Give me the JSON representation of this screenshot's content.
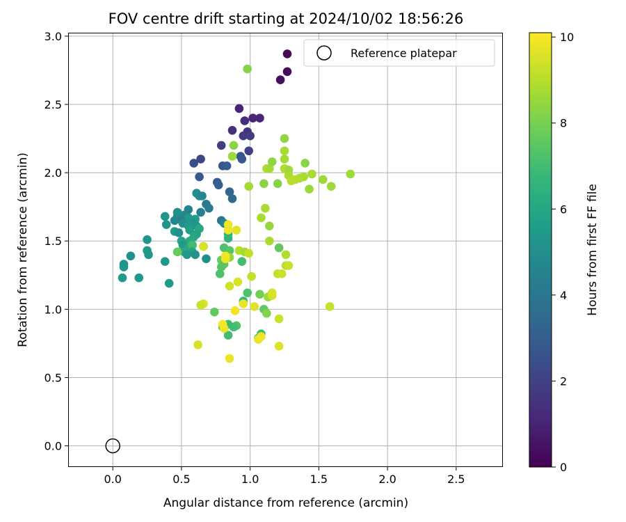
{
  "chart_data": {
    "type": "scatter",
    "title": "FOV centre drift starting at 2024/10/02 18:56:26",
    "xlabel": "Angular distance from reference (arcmin)",
    "ylabel": "Rotation from reference (arcmin)",
    "xlim": [
      -0.32,
      2.84
    ],
    "ylim": [
      -0.15,
      3.02
    ],
    "xticks": [
      0.0,
      0.5,
      1.0,
      1.5,
      2.0,
      2.5
    ],
    "xtick_labels": [
      "0.0",
      "0.5",
      "1.0",
      "1.5",
      "2.0",
      "2.5"
    ],
    "yticks": [
      0.0,
      0.5,
      1.0,
      1.5,
      2.0,
      2.5,
      3.0
    ],
    "ytick_labels": [
      "0.0",
      "0.5",
      "1.0",
      "1.5",
      "2.0",
      "2.5",
      "3.0"
    ],
    "grid": true,
    "legend": {
      "position": "upper right",
      "entries": [
        "Reference platepar"
      ]
    },
    "reference_point": {
      "x": 0.0,
      "y": 0.0,
      "label": "Reference platepar",
      "marker": "hollow circle",
      "edge_color": "#000000"
    },
    "colorbar": {
      "label": "Hours from first FF file",
      "range": [
        0,
        10.1
      ],
      "ticks": [
        0,
        2,
        4,
        6,
        8,
        10
      ],
      "tick_labels": [
        "0",
        "2",
        "4",
        "6",
        "8",
        "10"
      ],
      "colormap": "viridis",
      "colormap_stops": [
        "#440154",
        "#482878",
        "#3e4989",
        "#31688e",
        "#26828e",
        "#1f9e89",
        "#35b779",
        "#6ece58",
        "#b5de2b",
        "#fde725"
      ]
    },
    "series": [
      {
        "points": [
          [
            1.27,
            2.87,
            0.2
          ],
          [
            1.27,
            2.74,
            0.3
          ],
          [
            1.22,
            2.68,
            0.4
          ],
          [
            0.98,
            2.76,
            8.2
          ],
          [
            0.92,
            2.47,
            1.0
          ],
          [
            1.02,
            2.4,
            1.1
          ],
          [
            1.07,
            2.4,
            1.1
          ],
          [
            0.96,
            2.38,
            1.3
          ],
          [
            0.87,
            2.31,
            1.4
          ],
          [
            0.98,
            2.3,
            1.5
          ],
          [
            0.95,
            2.27,
            1.7
          ],
          [
            1.0,
            2.27,
            1.8
          ],
          [
            0.79,
            2.2,
            1.9
          ],
          [
            0.99,
            2.16,
            2.0
          ],
          [
            0.64,
            2.1,
            2.2
          ],
          [
            0.59,
            2.07,
            2.4
          ],
          [
            0.93,
            2.12,
            2.6
          ],
          [
            0.94,
            2.1,
            2.8
          ],
          [
            0.8,
            2.05,
            2.7
          ],
          [
            0.83,
            2.05,
            3.0
          ],
          [
            0.63,
            1.97,
            2.8
          ],
          [
            0.76,
            1.93,
            2.9
          ],
          [
            0.77,
            1.91,
            3.2
          ],
          [
            0.85,
            1.86,
            3.3
          ],
          [
            0.87,
            1.81,
            3.5
          ],
          [
            0.61,
            1.85,
            5.0
          ],
          [
            0.63,
            1.83,
            4.8
          ],
          [
            0.65,
            1.83,
            4.7
          ],
          [
            0.68,
            1.77,
            4.0
          ],
          [
            0.7,
            1.74,
            4.2
          ],
          [
            0.64,
            1.71,
            4.3
          ],
          [
            0.55,
            1.73,
            4.5
          ],
          [
            0.52,
            1.69,
            4.7
          ],
          [
            0.47,
            1.71,
            5.0
          ],
          [
            0.47,
            1.68,
            5.1
          ],
          [
            0.38,
            1.68,
            5.3
          ],
          [
            0.55,
            1.67,
            5.5
          ],
          [
            0.6,
            1.66,
            5.6
          ],
          [
            0.5,
            1.65,
            4.4
          ],
          [
            0.45,
            1.65,
            4.6
          ],
          [
            0.39,
            1.62,
            5.2
          ],
          [
            0.51,
            1.63,
            5.0
          ],
          [
            0.59,
            1.63,
            5.1
          ],
          [
            0.55,
            1.61,
            5.5
          ],
          [
            0.56,
            1.58,
            5.7
          ],
          [
            0.61,
            1.61,
            5.4
          ],
          [
            0.45,
            1.57,
            5.6
          ],
          [
            0.48,
            1.56,
            5.0
          ],
          [
            0.63,
            1.59,
            6.0
          ],
          [
            0.61,
            1.55,
            5.8
          ],
          [
            0.59,
            1.53,
            6.0
          ],
          [
            0.5,
            1.5,
            5.9
          ],
          [
            0.56,
            1.5,
            6.2
          ],
          [
            0.51,
            1.47,
            5.5
          ],
          [
            0.55,
            1.44,
            6.1
          ],
          [
            0.58,
            1.47,
            7.0
          ],
          [
            0.66,
            1.46,
            6.5
          ],
          [
            0.52,
            1.42,
            6.0
          ],
          [
            0.58,
            1.42,
            5.9
          ],
          [
            0.54,
            1.4,
            5.4
          ],
          [
            0.6,
            1.4,
            5.2
          ],
          [
            0.47,
            1.42,
            7.7
          ],
          [
            0.25,
            1.51,
            5.2
          ],
          [
            0.25,
            1.43,
            5.5
          ],
          [
            0.26,
            1.4,
            5.3
          ],
          [
            0.13,
            1.39,
            5.0
          ],
          [
            0.08,
            1.33,
            5.2
          ],
          [
            0.08,
            1.31,
            5.3
          ],
          [
            0.38,
            1.35,
            5.3
          ],
          [
            0.07,
            1.23,
            5.5
          ],
          [
            0.19,
            1.23,
            5.4
          ],
          [
            0.41,
            1.19,
            5.5
          ],
          [
            0.68,
            1.37,
            5.0
          ],
          [
            0.79,
            1.65,
            4.0
          ],
          [
            0.81,
            1.63,
            4.6
          ],
          [
            0.84,
            1.55,
            6.5
          ],
          [
            0.84,
            1.52,
            6.6
          ],
          [
            0.81,
            1.45,
            7.2
          ],
          [
            0.85,
            1.43,
            7.4
          ],
          [
            0.79,
            1.36,
            7.7
          ],
          [
            0.81,
            1.33,
            7.5
          ],
          [
            0.79,
            1.31,
            7.4
          ],
          [
            0.78,
            1.26,
            7.2
          ],
          [
            0.92,
            1.43,
            9.0
          ],
          [
            0.96,
            1.42,
            8.7
          ],
          [
            0.99,
            1.41,
            9.2
          ],
          [
            0.94,
            1.35,
            7.0
          ],
          [
            0.85,
            1.38,
            8.5
          ],
          [
            0.82,
            1.37,
            9.8
          ],
          [
            0.66,
            1.46,
            9.5
          ],
          [
            0.82,
            1.39,
            9.9
          ],
          [
            0.84,
            1.58,
            9.9
          ],
          [
            0.84,
            1.62,
            9.9
          ],
          [
            0.9,
            1.58,
            9.7
          ],
          [
            0.98,
            1.12,
            7.2
          ],
          [
            0.95,
            1.06,
            6.8
          ],
          [
            0.95,
            1.04,
            9.8
          ],
          [
            1.01,
            1.24,
            9.2
          ],
          [
            0.91,
            1.2,
            9.5
          ],
          [
            0.85,
            1.17,
            9.4
          ],
          [
            0.89,
            0.99,
            9.9
          ],
          [
            0.9,
            0.88,
            7.3
          ],
          [
            0.88,
            0.87,
            7.0
          ],
          [
            0.84,
            0.89,
            6.9
          ],
          [
            0.8,
            0.87,
            7.1
          ],
          [
            0.84,
            0.81,
            7.0
          ],
          [
            0.81,
            0.86,
            9.8
          ],
          [
            0.8,
            0.89,
            10.0
          ],
          [
            0.74,
            0.98,
            7.6
          ],
          [
            0.66,
            1.04,
            9.6
          ],
          [
            0.64,
            1.03,
            9.3
          ],
          [
            0.62,
            0.74,
            9.5
          ],
          [
            0.85,
            0.64,
            9.8
          ],
          [
            1.03,
            1.02,
            9.6
          ],
          [
            1.06,
            0.79,
            7.4
          ],
          [
            1.08,
            0.82,
            7.0
          ],
          [
            1.06,
            0.78,
            9.8
          ],
          [
            1.08,
            0.8,
            9.9
          ],
          [
            1.21,
            0.73,
            9.6
          ],
          [
            1.21,
            0.93,
            9.3
          ],
          [
            1.1,
            1.0,
            7.6
          ],
          [
            1.12,
            0.97,
            8.2
          ],
          [
            1.07,
            1.11,
            7.9
          ],
          [
            1.13,
            1.09,
            8.6
          ],
          [
            1.16,
            1.1,
            9.4
          ],
          [
            1.16,
            1.12,
            9.5
          ],
          [
            1.58,
            1.02,
            9.2
          ],
          [
            1.2,
            1.26,
            9.2
          ],
          [
            1.23,
            1.26,
            9.3
          ],
          [
            1.26,
            1.32,
            9.0
          ],
          [
            1.28,
            1.32,
            9.3
          ],
          [
            1.26,
            1.4,
            8.9
          ],
          [
            1.21,
            1.45,
            7.6
          ],
          [
            1.14,
            1.5,
            8.8
          ],
          [
            1.14,
            1.61,
            8.5
          ],
          [
            1.08,
            1.67,
            8.8
          ],
          [
            1.11,
            1.74,
            8.8
          ],
          [
            1.1,
            1.92,
            8.3
          ],
          [
            1.2,
            1.92,
            8.2
          ],
          [
            1.12,
            2.03,
            8.9
          ],
          [
            1.14,
            2.03,
            8.7
          ],
          [
            1.16,
            2.08,
            8.4
          ],
          [
            1.25,
            2.03,
            8.9
          ],
          [
            1.28,
            2.02,
            8.6
          ],
          [
            1.25,
            2.1,
            8.7
          ],
          [
            1.25,
            2.16,
            8.8
          ],
          [
            1.25,
            2.25,
            8.4
          ],
          [
            1.28,
            1.98,
            8.8
          ],
          [
            1.3,
            1.94,
            9.0
          ],
          [
            1.33,
            1.95,
            9.0
          ],
          [
            1.36,
            1.96,
            8.9
          ],
          [
            1.39,
            1.97,
            8.8
          ],
          [
            1.4,
            2.07,
            8.3
          ],
          [
            1.45,
            1.99,
            8.8
          ],
          [
            1.43,
            1.88,
            8.6
          ],
          [
            1.53,
            1.95,
            8.6
          ],
          [
            1.59,
            1.9,
            8.6
          ],
          [
            1.73,
            1.99,
            8.6
          ],
          [
            0.88,
            2.2,
            8.3
          ],
          [
            0.87,
            2.12,
            8.6
          ],
          [
            0.99,
            1.9,
            8.7
          ]
        ]
      }
    ]
  }
}
